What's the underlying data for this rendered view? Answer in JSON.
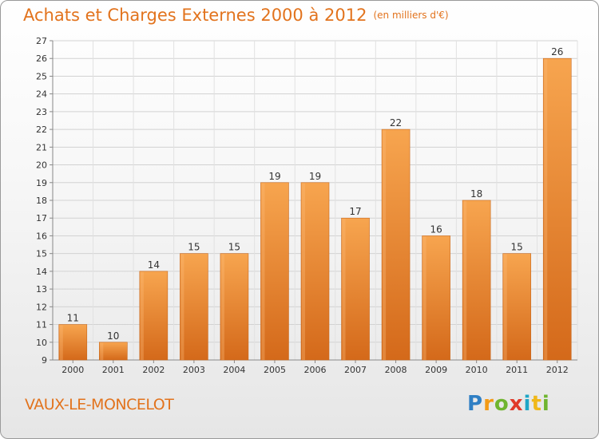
{
  "header": {
    "title": "Achats et Charges Externes 2000 à 2012",
    "unit": "(en milliers d'€)"
  },
  "commune": "VAUX-LE-MONCELOT",
  "logo": {
    "text": "Proxiti"
  },
  "colors": {
    "accent": "#e2731d",
    "bar_top": "#f7a04a",
    "bar_bottom": "#d86f1b"
  },
  "chart_data": {
    "type": "bar",
    "title": "Achats et Charges Externes 2000 à 2012",
    "subtitle": "(en milliers d'€)",
    "categories": [
      "2000",
      "2001",
      "2002",
      "2003",
      "2004",
      "2005",
      "2006",
      "2007",
      "2008",
      "2009",
      "2010",
      "2011",
      "2012"
    ],
    "values": [
      11,
      10,
      14,
      15,
      15,
      19,
      19,
      17,
      22,
      16,
      18,
      15,
      26
    ],
    "ylim": [
      9,
      27
    ],
    "yticks": [
      9,
      10,
      11,
      12,
      13,
      14,
      15,
      16,
      17,
      18,
      19,
      20,
      21,
      22,
      23,
      24,
      25,
      26,
      27
    ],
    "xlabel": "",
    "ylabel": "",
    "grid": true,
    "data_labels": true
  }
}
